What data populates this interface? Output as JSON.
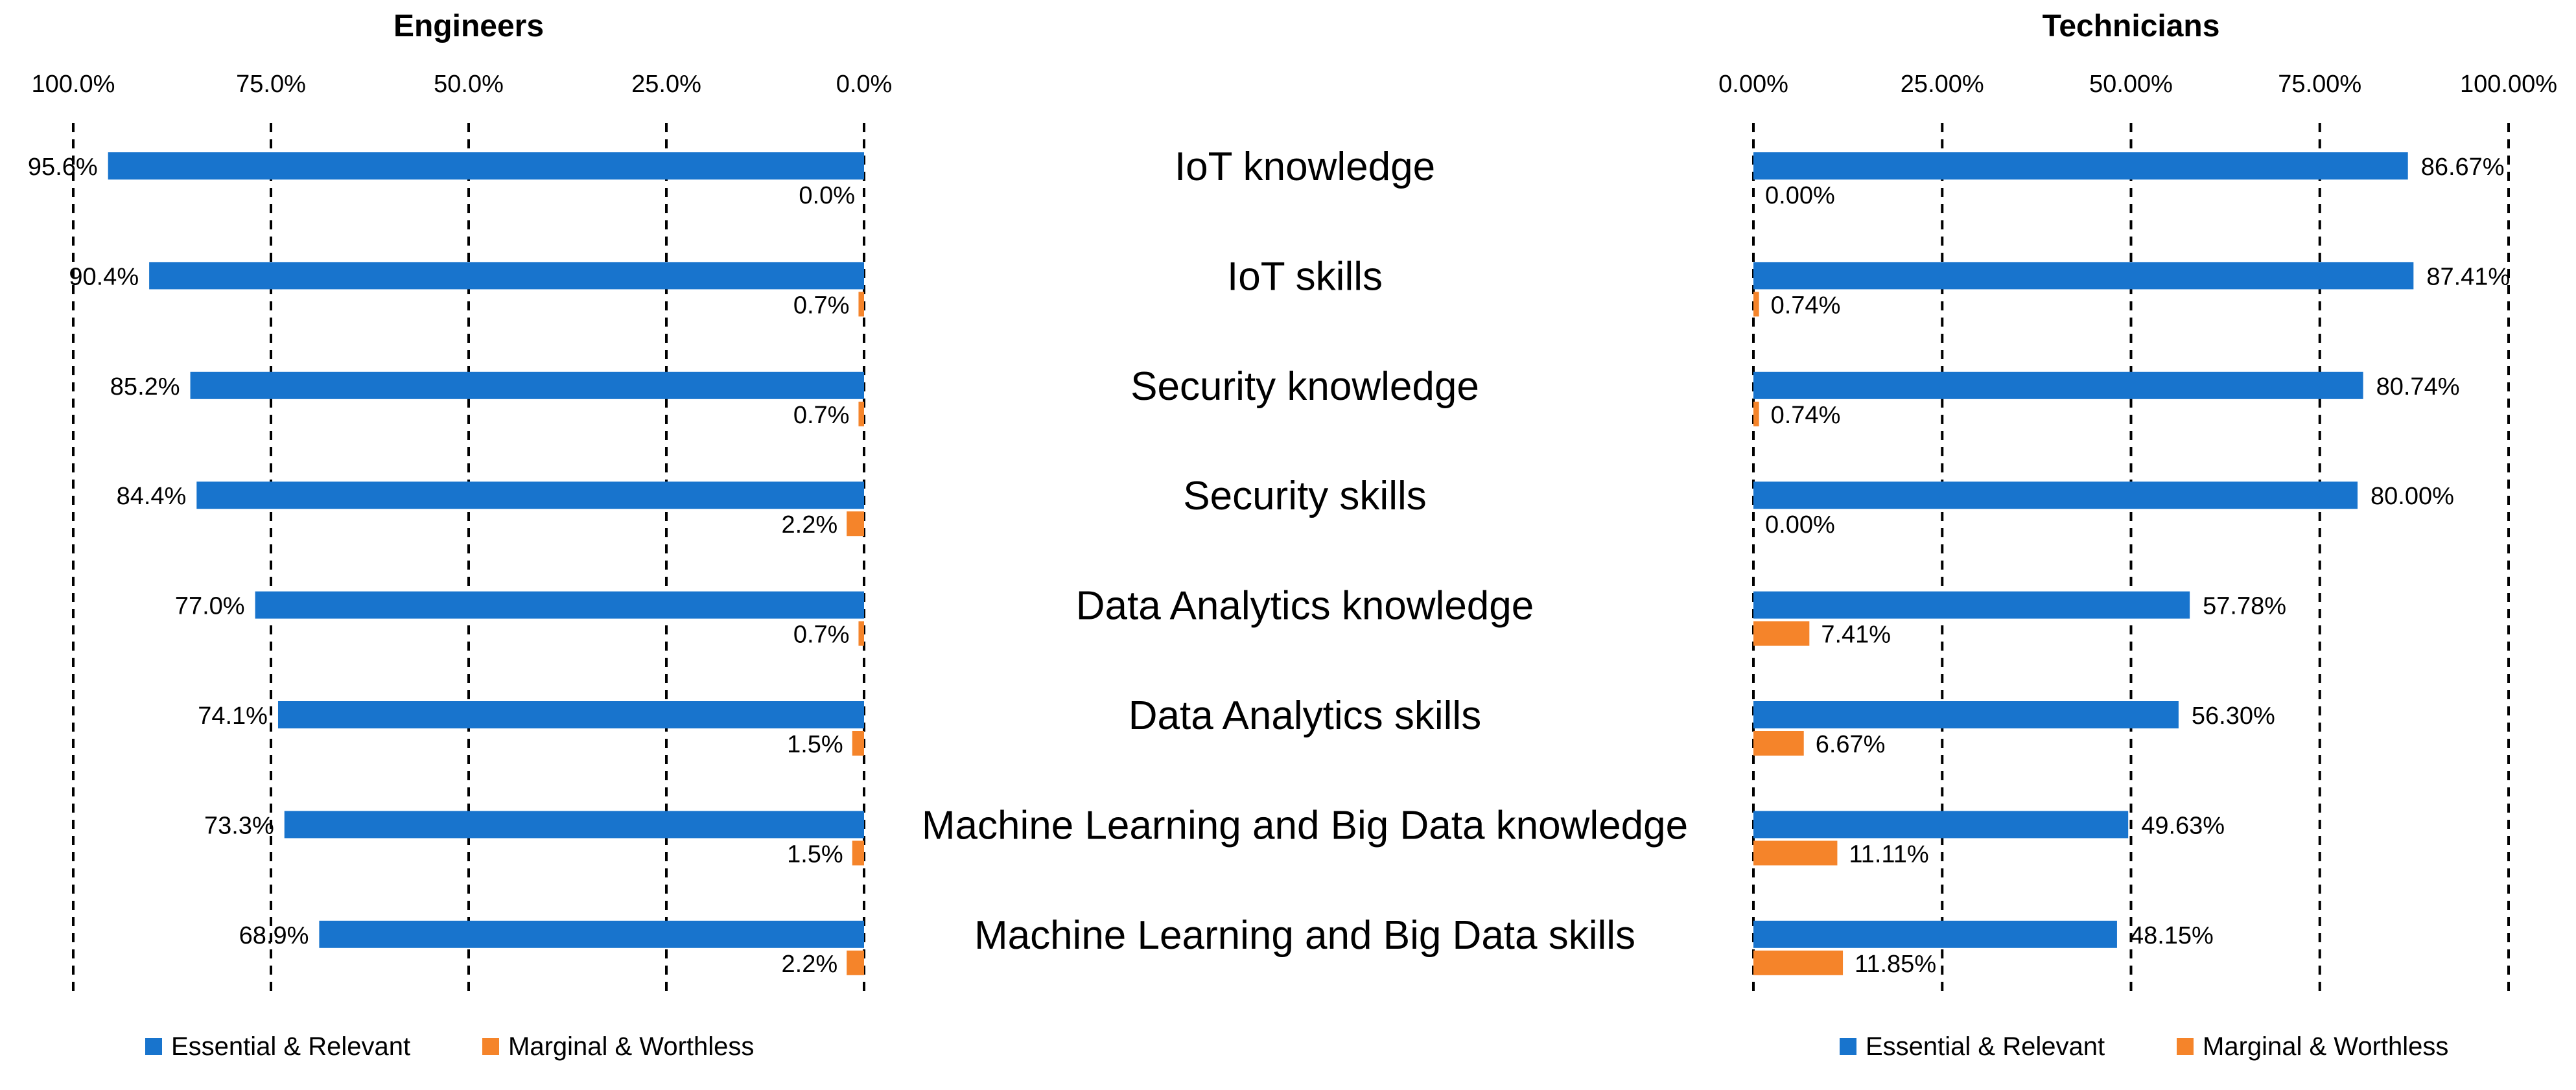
{
  "chart_data": {
    "type": "bar",
    "orientation": "horizontal",
    "categories": [
      "IoT knowledge",
      "IoT skills",
      "Security knowledge",
      "Security skills",
      "Data Analytics knowledge",
      "Data Analytics skills",
      "Machine Learning and Big Data knowledge",
      "Machine Learning and Big Data skills"
    ],
    "panels": [
      {
        "title": "Engineers",
        "direction": "right-to-left",
        "xlim": [
          0,
          100
        ],
        "ticks": [
          100,
          75,
          50,
          25,
          0
        ],
        "tick_labels": [
          "100.0%",
          "75.0%",
          "50.0%",
          "25.0%",
          "0.0%"
        ],
        "series": [
          {
            "name": "Essential & Relevant",
            "color": "#1874CD",
            "values": [
              95.6,
              90.4,
              85.2,
              84.4,
              77.0,
              74.1,
              73.3,
              68.9
            ],
            "labels": [
              "95.6%",
              "90.4%",
              "85.2%",
              "84.4%",
              "77.0%",
              "74.1%",
              "73.3%",
              "68.9%"
            ]
          },
          {
            "name": "Marginal & Worthless",
            "color": "#F5842A",
            "values": [
              0.0,
              0.7,
              0.7,
              2.2,
              0.7,
              1.5,
              1.5,
              2.2
            ],
            "labels": [
              "0.0%",
              "0.7%",
              "0.7%",
              "2.2%",
              "0.7%",
              "1.5%",
              "1.5%",
              "2.2%"
            ]
          }
        ],
        "legend": {
          "placement": "bottom",
          "items": [
            "Essential & Relevant",
            "Marginal & Worthless"
          ]
        }
      },
      {
        "title": "Technicians",
        "direction": "left-to-right",
        "xlim": [
          0,
          100
        ],
        "ticks": [
          0,
          25,
          50,
          75,
          100
        ],
        "tick_labels": [
          "0.00%",
          "25.00%",
          "50.00%",
          "75.00%",
          "100.00%"
        ],
        "series": [
          {
            "name": "Essential & Relevant",
            "color": "#1874CD",
            "values": [
              86.67,
              87.41,
              80.74,
              80.0,
              57.78,
              56.3,
              49.63,
              48.15
            ],
            "labels": [
              "86.67%",
              "87.41%",
              "80.74%",
              "80.00%",
              "57.78%",
              "56.30%",
              "49.63%",
              "48.15%"
            ]
          },
          {
            "name": "Marginal & Worthless",
            "color": "#F5842A",
            "values": [
              0.0,
              0.74,
              0.74,
              0.0,
              7.41,
              6.67,
              11.11,
              11.85
            ],
            "labels": [
              "0.00%",
              "0.74%",
              "0.74%",
              "0.00%",
              "7.41%",
              "6.67%",
              "11.11%",
              "11.85%"
            ]
          }
        ],
        "legend": {
          "placement": "bottom",
          "items": [
            "Essential & Relevant",
            "Marginal & Worthless"
          ]
        }
      }
    ],
    "grid": "vertical dashed"
  }
}
